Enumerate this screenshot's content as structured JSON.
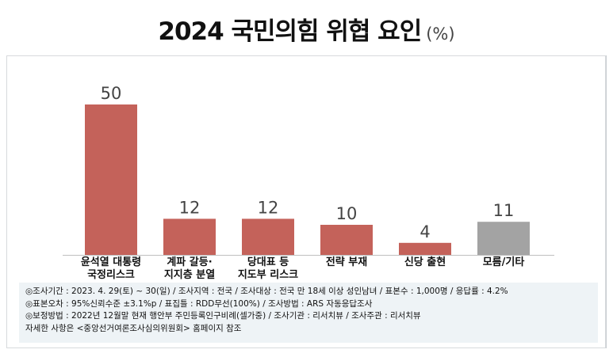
{
  "header": {
    "title": "2024 국민의힘 위협 요인",
    "unit": "(%)"
  },
  "chart_data": {
    "type": "bar",
    "title": "2024 국민의힘 위협 요인",
    "unit": "%",
    "categories": [
      "윤석열 대통령\n국정리스크",
      "계파 갈등·\n지지층 분열",
      "당대표 등\n지도부 리스크",
      "전략 부재",
      "신당 출현",
      "모름/기타"
    ],
    "values": [
      50,
      12,
      12,
      10,
      4,
      11
    ],
    "colors": [
      "#c4625a",
      "#c4625a",
      "#c4625a",
      "#c4625a",
      "#c4625a",
      "#a3a3a3"
    ],
    "value_label_color": "#444444",
    "ylim": [
      0,
      50
    ],
    "xlabel": "",
    "ylabel": "",
    "grid": false
  },
  "notes": {
    "lines": [
      "◎조사기간 : 2023. 4. 29(토) ~ 30(일) / 조사지역 : 전국 / 조사대상 : 전국 만 18세 이상 성인남녀 / 표본수 : 1,000명 / 응답률 : 4.2%",
      "◎표본오차 : 95%신뢰수준 ±3.1%p  / 표집틀 : RDD무선(100%) / 조사방법 : ARS 자동응답조사",
      "◎보정방법 : 2022년 12월말 현재 행안부 주민등록인구비례(셀가중) / 조사기관 : 리서치뷰 / 조사주관 : 리서치뷰",
      "자세한 사항은 <중앙선거여론조사심의위원회> 홈페이지 참조"
    ]
  }
}
